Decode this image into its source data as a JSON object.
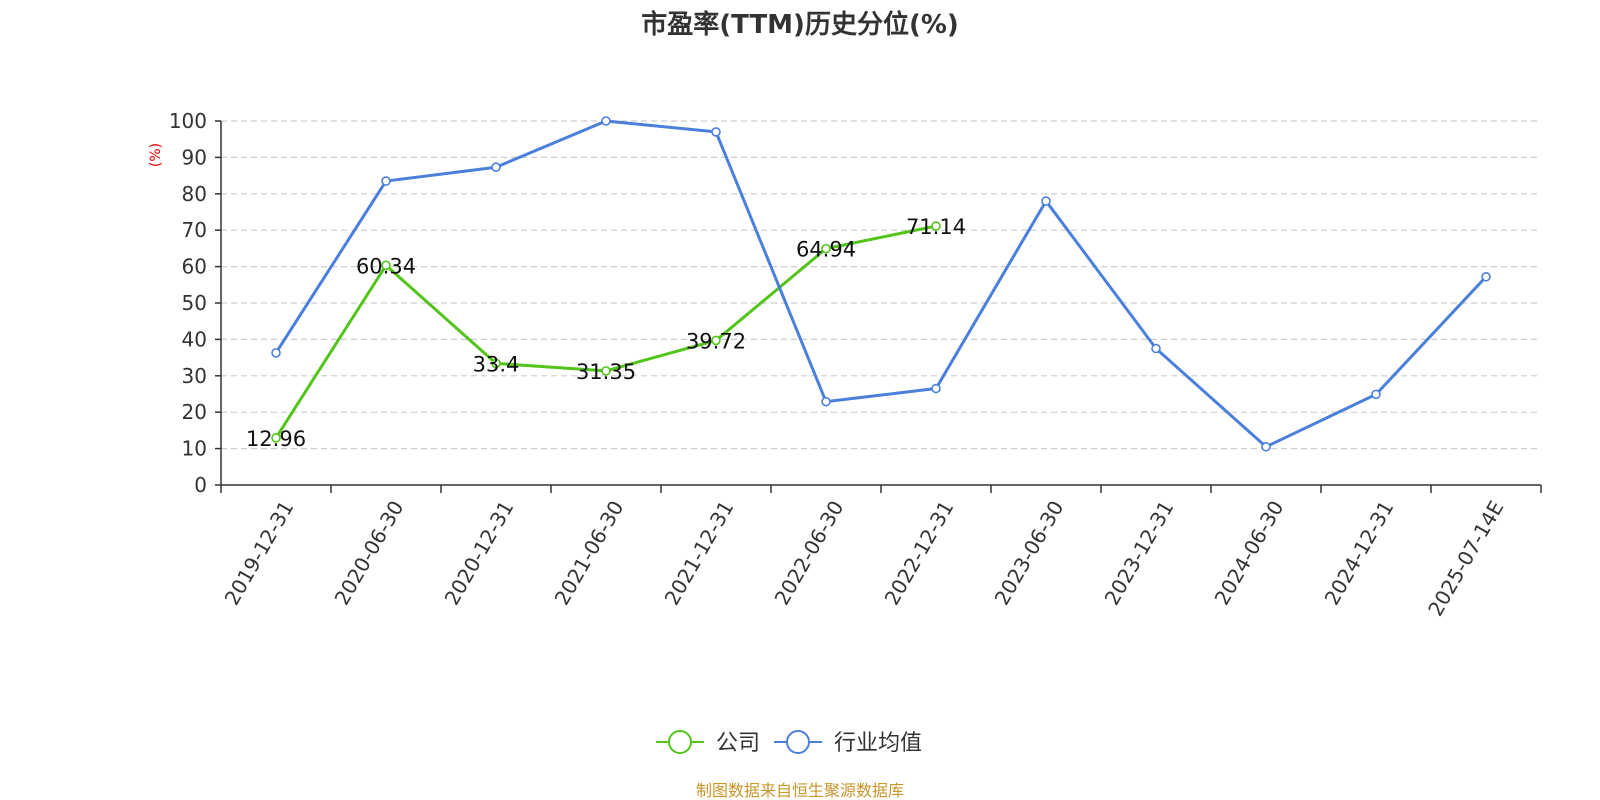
{
  "chart_data": {
    "type": "line",
    "title": "市盈率(TTM)历史分位(%)",
    "ylabel": "(%)",
    "xlabel": "",
    "ylim": [
      0,
      100
    ],
    "yticks": [
      0,
      10,
      20,
      30,
      40,
      50,
      60,
      70,
      80,
      90,
      100
    ],
    "grid": "horizontal-dashed",
    "categories": [
      "2019-12-31",
      "2020-06-30",
      "2020-12-31",
      "2021-06-30",
      "2021-12-31",
      "2022-06-30",
      "2022-12-31",
      "2023-06-30",
      "2023-12-31",
      "2024-06-30",
      "2024-12-31",
      "2025-07-14E"
    ],
    "series": [
      {
        "name": "公司",
        "color": "#52c41a",
        "show_labels": true,
        "values": [
          12.96,
          60.34,
          33.4,
          31.35,
          39.72,
          64.94,
          71.14,
          null,
          null,
          null,
          null,
          null
        ]
      },
      {
        "name": "行业均值",
        "color": "#4a7fdc",
        "show_labels": false,
        "values": [
          36.3,
          83.5,
          87.3,
          100,
          97,
          22.9,
          26.5,
          78,
          37.5,
          10.5,
          24.9,
          57.2
        ]
      }
    ],
    "legend_position": "bottom-center",
    "source": "制图数据来自恒生聚源数据库"
  },
  "colors": {
    "ylabel": "#e00000",
    "source": "#c8962a",
    "grid": "#cccccc",
    "axis": "#333333"
  }
}
